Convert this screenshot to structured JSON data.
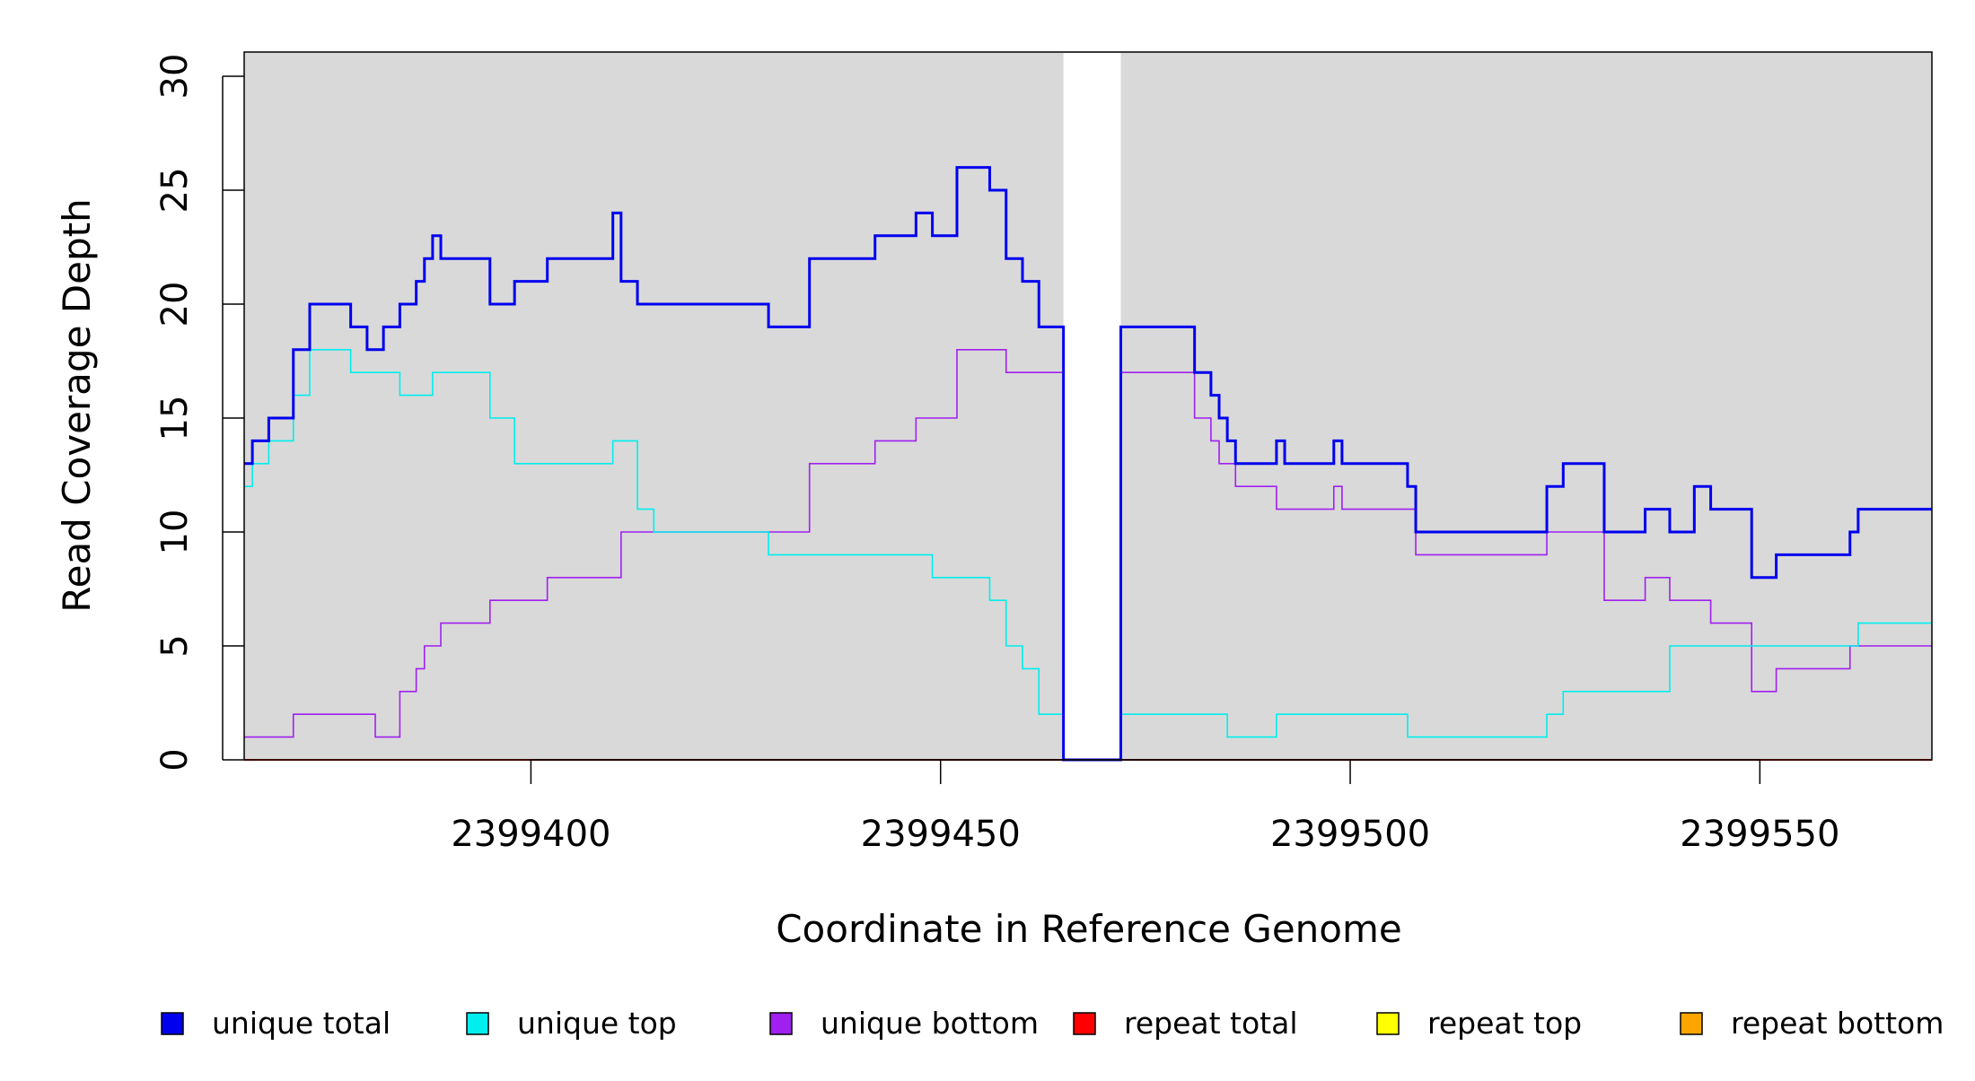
{
  "chart_data": {
    "type": "line",
    "step": true,
    "xlabel": "Coordinate in Reference Genome",
    "ylabel": "Read Coverage Depth",
    "xlim": [
      2399365,
      2399571
    ],
    "ylim": [
      0,
      31
    ],
    "y_ticks": [
      0,
      5,
      10,
      15,
      20,
      25,
      30
    ],
    "y_tick_labels": [
      "0",
      "5",
      "10",
      "15",
      "20",
      "25",
      "30"
    ],
    "x_ticks": [
      2399400,
      2399450,
      2399500,
      2399550
    ],
    "x_tick_labels": [
      "2399400",
      "2399450",
      "2399500",
      "2399550"
    ],
    "gap_region": [
      2399465,
      2399472
    ],
    "background": "#d9d9d9",
    "legend_position": "bottom",
    "series": [
      {
        "name": "unique total",
        "color": "#0000ee",
        "x": [
          2399365,
          2399366,
          2399368,
          2399371,
          2399373,
          2399378,
          2399380,
          2399382,
          2399384,
          2399386,
          2399387,
          2399388,
          2399389,
          2399395,
          2399398,
          2399402,
          2399410,
          2399411,
          2399413,
          2399415,
          2399429,
          2399434,
          2399442,
          2399447,
          2399449,
          2399452,
          2399456,
          2399458,
          2399460,
          2399462,
          2399464,
          2399465,
          2399472,
          2399481,
          2399483,
          2399484,
          2399485,
          2399486,
          2399491,
          2399492,
          2399498,
          2399499,
          2399507,
          2399508,
          2399524,
          2399526,
          2399531,
          2399536,
          2399539,
          2399542,
          2399544,
          2399549,
          2399552,
          2399561,
          2399562,
          2399571
        ],
        "y": [
          13,
          14,
          15,
          18,
          20,
          19,
          18,
          19,
          20,
          21,
          22,
          23,
          22,
          20,
          21,
          22,
          24,
          21,
          20,
          20,
          19,
          22,
          23,
          24,
          23,
          26,
          25,
          22,
          21,
          19,
          19,
          0,
          19,
          17,
          16,
          15,
          14,
          13,
          14,
          13,
          14,
          13,
          12,
          10,
          12,
          13,
          10,
          11,
          10,
          12,
          11,
          8,
          9,
          10,
          11,
          11
        ]
      },
      {
        "name": "unique top",
        "color": "#00eeee",
        "x": [
          2399365,
          2399366,
          2399368,
          2399371,
          2399373,
          2399378,
          2399384,
          2399388,
          2399395,
          2399398,
          2399410,
          2399413,
          2399415,
          2399429,
          2399449,
          2399456,
          2399458,
          2399460,
          2399462,
          2399464,
          2399465,
          2399472,
          2399485,
          2399491,
          2399507,
          2399524,
          2399526,
          2399539,
          2399562,
          2399571
        ],
        "y": [
          12,
          13,
          14,
          16,
          18,
          17,
          16,
          17,
          15,
          13,
          14,
          11,
          10,
          9,
          8,
          7,
          5,
          4,
          2,
          2,
          0,
          2,
          1,
          2,
          1,
          2,
          3,
          5,
          6,
          6
        ]
      },
      {
        "name": "unique bottom",
        "color": "#a020f0",
        "x": [
          2399365,
          2399371,
          2399381,
          2399384,
          2399386,
          2399387,
          2399389,
          2399395,
          2399402,
          2399411,
          2399434,
          2399442,
          2399447,
          2399452,
          2399458,
          2399465,
          2399472,
          2399481,
          2399483,
          2399484,
          2399486,
          2399491,
          2399498,
          2399499,
          2399508,
          2399524,
          2399531,
          2399536,
          2399539,
          2399544,
          2399549,
          2399552,
          2399561,
          2399571
        ],
        "y": [
          1,
          2,
          1,
          3,
          4,
          5,
          6,
          7,
          8,
          10,
          13,
          14,
          15,
          18,
          17,
          0,
          17,
          15,
          14,
          13,
          12,
          11,
          12,
          11,
          9,
          10,
          7,
          8,
          7,
          6,
          3,
          4,
          5,
          5
        ]
      },
      {
        "name": "repeat total",
        "color": "#ff0000",
        "x": [
          2399365,
          2399571
        ],
        "y": [
          0,
          0
        ]
      },
      {
        "name": "repeat top",
        "color": "#ffff00",
        "x": [
          2399365,
          2399571
        ],
        "y": [
          0,
          0
        ]
      },
      {
        "name": "repeat bottom",
        "color": "#ffa500",
        "x": [
          2399365,
          2399571
        ],
        "y": [
          0,
          0
        ]
      }
    ]
  }
}
